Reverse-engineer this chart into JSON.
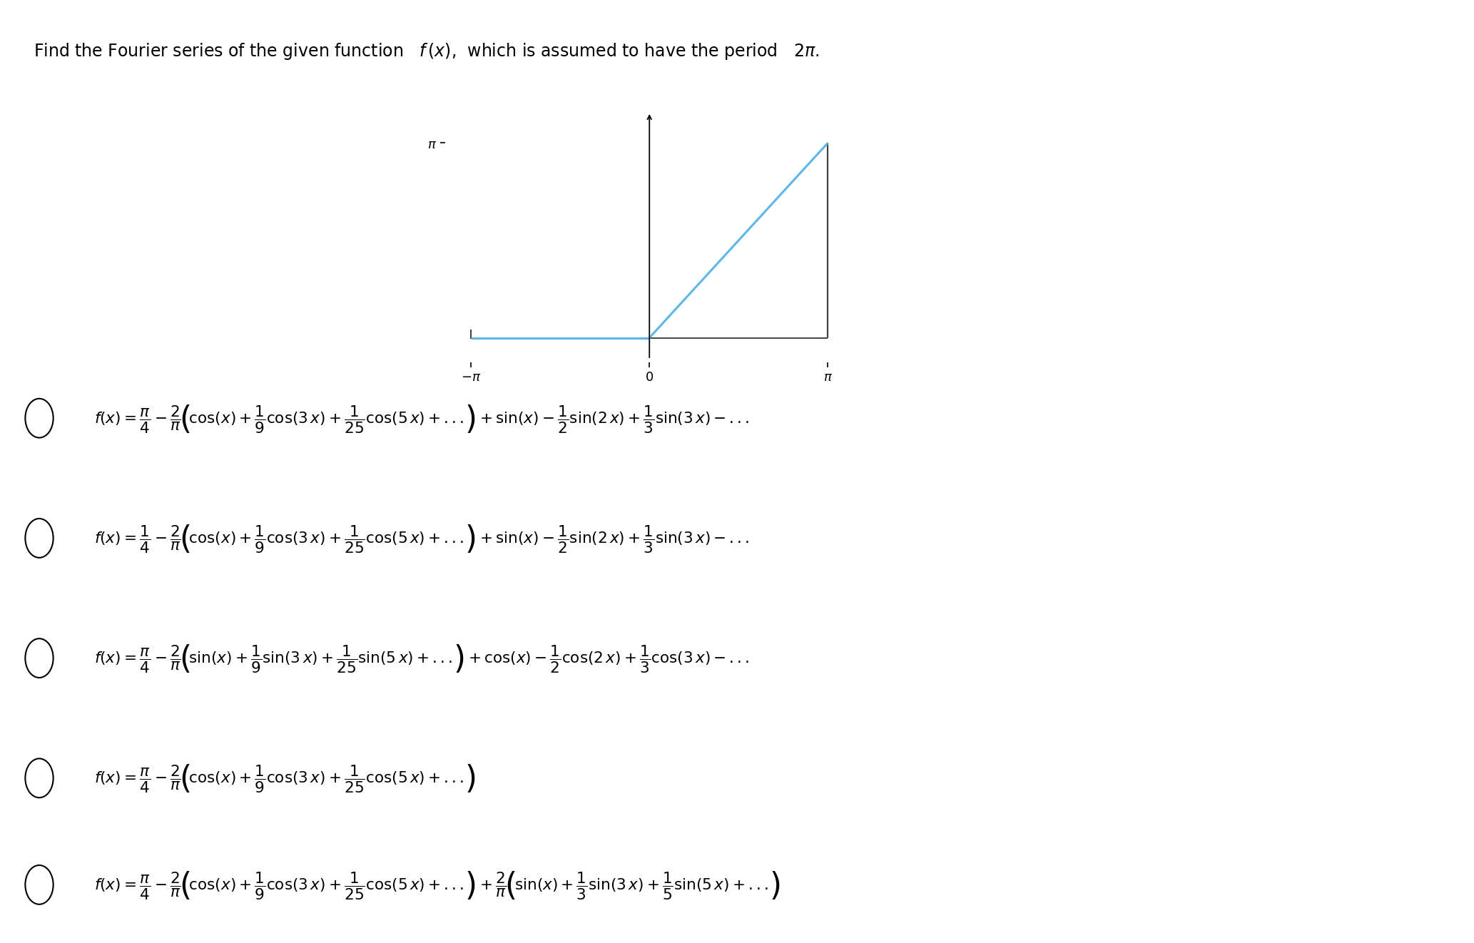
{
  "bg_color": "#ffffff",
  "graph_color": "#5bb8e8",
  "graph_dark_color": "#444444",
  "title": "Find the Fourier series of the given function   $f\\,(x)$,  which is assumed to have the period   $2\\pi$.",
  "options": [
    "f (x) = \\dfrac{\\pi}{4} - \\dfrac{2}{\\pi}\\!\\left(\\!\\cos(x) + \\dfrac{1}{9}\\cos(3\\,x) + \\dfrac{1}{25}\\cos(5\\,x) + ...\\!\\right) + \\sin(x) - \\dfrac{1}{2}\\sin(2\\,x) + \\dfrac{1}{3}\\sin(3\\,x) - ...",
    "f (x) = \\dfrac{1}{4} - \\dfrac{2}{\\pi}\\!\\left(\\!\\cos(x) + \\dfrac{1}{9}\\cos(3\\,x) + \\dfrac{1}{25}\\cos(5\\,x) + ...\\!\\right) + \\sin(x) - \\dfrac{1}{2}\\sin(2\\,x) + \\dfrac{1}{3}\\sin(3\\,x) - ...",
    "f (x) = \\dfrac{\\pi}{4} - \\dfrac{2}{\\pi}\\!\\left(\\!\\sin(x) + \\dfrac{1}{9}\\sin(3\\,x) + \\dfrac{1}{25}\\sin(5\\,x) + ...\\!\\right) + \\cos(x) - \\dfrac{1}{2}\\cos(2\\,x) + \\dfrac{1}{3}\\cos(3\\,x) - ...",
    "f (x) = \\dfrac{\\pi}{4} - \\dfrac{2}{\\pi}\\!\\left(\\!\\cos(x) + \\dfrac{1}{9}\\cos(3\\,x) + \\dfrac{1}{25}\\cos(5\\,x) + ...\\!\\right)",
    "f (x) = \\dfrac{\\pi}{4} - \\dfrac{2}{\\pi}\\!\\left(\\!\\cos(x) + \\dfrac{1}{9}\\cos(3\\,x) + \\dfrac{1}{25}\\cos(5\\,x) + ...\\!\\right) + \\dfrac{2}{\\pi}\\!\\left(\\!\\sin(x) + \\dfrac{1}{3}\\sin(3\\,x) + \\dfrac{1}{5}\\sin(5\\,x) + ...\\!\\right)"
  ],
  "graph_xlim": [
    -3.6,
    3.6
  ],
  "graph_ylim": [
    -0.4,
    3.9
  ],
  "pi": 3.14159265358979
}
